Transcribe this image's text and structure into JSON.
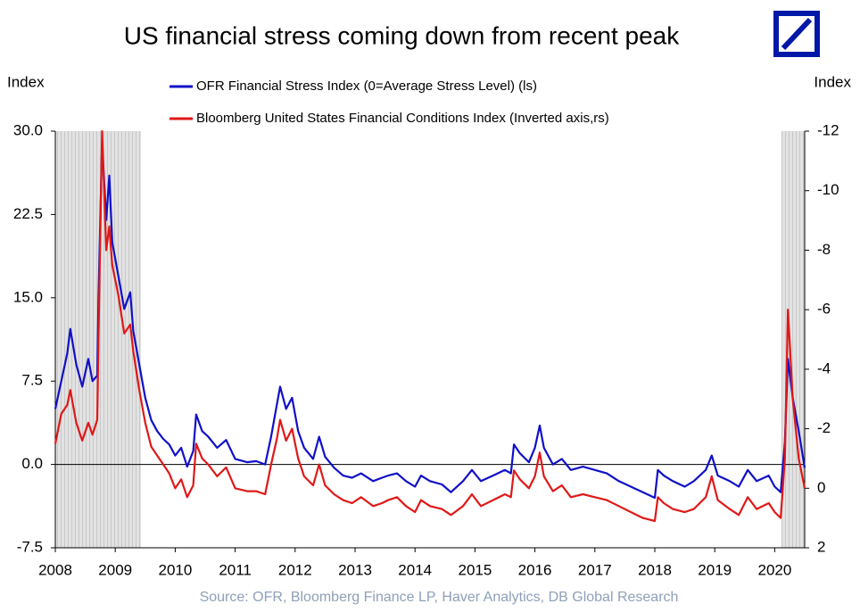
{
  "chart_data": {
    "type": "line",
    "title": "US financial stress coming down from recent peak",
    "y_label": "Index",
    "y2_label": "Index",
    "source": "Source:  OFR, Bloomberg Finance LP, Haver Analytics, DB Global  Research",
    "xlim": [
      2008,
      2020.5
    ],
    "xticks": [
      2008,
      2009,
      2010,
      2011,
      2012,
      2013,
      2014,
      2015,
      2016,
      2017,
      2018,
      2019,
      2020
    ],
    "ylim": [
      -7.5,
      30
    ],
    "yticks": [
      -7.5,
      {
        "value": 0,
        "label": "0.0"
      },
      7.5,
      {
        "value": 15,
        "label": "15.0"
      },
      22.5,
      {
        "value": 30,
        "label": "30.0"
      }
    ],
    "y2lim": [
      2,
      -12
    ],
    "y2ticks": [
      2,
      0,
      -2,
      -4,
      -6,
      -8,
      -10,
      -12
    ],
    "shaded_regions": [
      [
        2008,
        2009.43
      ],
      [
        2020.11,
        2020.5
      ]
    ],
    "x": [
      2008.0,
      2008.1,
      2008.2,
      2008.25,
      2008.35,
      2008.45,
      2008.55,
      2008.62,
      2008.7,
      2008.72,
      2008.78,
      2008.85,
      2008.9,
      2008.95,
      2009.05,
      2009.15,
      2009.25,
      2009.3,
      2009.4,
      2009.5,
      2009.6,
      2009.7,
      2009.8,
      2009.9,
      2010.0,
      2010.1,
      2010.2,
      2010.3,
      2010.35,
      2010.45,
      2010.55,
      2010.7,
      2010.85,
      2011.0,
      2011.2,
      2011.35,
      2011.5,
      2011.6,
      2011.7,
      2011.75,
      2011.85,
      2011.95,
      2012.05,
      2012.15,
      2012.3,
      2012.4,
      2012.5,
      2012.65,
      2012.8,
      2012.95,
      2013.1,
      2013.3,
      2013.45,
      2013.55,
      2013.7,
      2013.85,
      2014.0,
      2014.1,
      2014.25,
      2014.45,
      2014.6,
      2014.8,
      2014.95,
      2015.1,
      2015.3,
      2015.5,
      2015.6,
      2015.65,
      2015.75,
      2015.9,
      2016.0,
      2016.08,
      2016.15,
      2016.3,
      2016.45,
      2016.6,
      2016.8,
      2017.0,
      2017.2,
      2017.4,
      2017.6,
      2017.8,
      2018.0,
      2018.05,
      2018.15,
      2018.3,
      2018.5,
      2018.65,
      2018.85,
      2018.95,
      2019.05,
      2019.25,
      2019.4,
      2019.55,
      2019.7,
      2019.9,
      2020.0,
      2020.1,
      2020.17,
      2020.22,
      2020.3,
      2020.4,
      2020.5
    ],
    "series": [
      {
        "name": "OFR Financial Stress Index (0=Average Stress Level) (ls)",
        "color": "#1010c8",
        "values": [
          5,
          7.5,
          10,
          12.2,
          9,
          7,
          9.5,
          7.5,
          8,
          15,
          29,
          22,
          26,
          20,
          17,
          14,
          15.5,
          12,
          9,
          6,
          4,
          3,
          2.3,
          1.8,
          0.8,
          1.5,
          -0.2,
          1.2,
          4.5,
          3,
          2.5,
          1.5,
          2.2,
          0.5,
          0.2,
          0.3,
          0,
          2.5,
          5.5,
          7,
          5,
          6,
          3,
          1.5,
          0.5,
          2.5,
          0.7,
          -0.3,
          -1,
          -1.2,
          -0.8,
          -1.5,
          -1.2,
          -1,
          -0.8,
          -1.5,
          -2,
          -1,
          -1.5,
          -1.8,
          -2.5,
          -1.5,
          -0.5,
          -1.5,
          -1,
          -0.5,
          -0.8,
          1.8,
          1,
          0.2,
          1.5,
          3.5,
          1.5,
          0,
          0.5,
          -0.5,
          -0.2,
          -0.5,
          -0.8,
          -1.5,
          -2,
          -2.5,
          -3,
          -0.5,
          -1,
          -1.5,
          -2,
          -1.5,
          -0.5,
          0.8,
          -1,
          -1.5,
          -2,
          -0.5,
          -1.5,
          -1,
          -2,
          -2.5,
          2,
          9.5,
          6,
          3,
          -0.3
        ]
      },
      {
        "name": "Bloomberg United States Financial Conditions Index  (Inverted axis,rs)",
        "color": "#e01818",
        "axis": "y2",
        "values": [
          -1.5,
          -2.5,
          -2.8,
          -3.3,
          -2.2,
          -1.6,
          -2.2,
          -1.8,
          -2.3,
          -5,
          -12,
          -8,
          -8.8,
          -7.5,
          -6.5,
          -5.2,
          -5.5,
          -4.6,
          -3.3,
          -2.2,
          -1.4,
          -1.1,
          -0.8,
          -0.5,
          0,
          -0.3,
          0.3,
          -0.1,
          -1.5,
          -1,
          -0.8,
          -0.4,
          -0.7,
          0,
          0.1,
          0.1,
          0.2,
          -0.8,
          -1.7,
          -2.3,
          -1.6,
          -2,
          -1,
          -0.4,
          -0.1,
          -0.8,
          -0.1,
          0.2,
          0.4,
          0.5,
          0.3,
          0.6,
          0.5,
          0.4,
          0.3,
          0.6,
          0.8,
          0.4,
          0.6,
          0.7,
          0.9,
          0.6,
          0.2,
          0.6,
          0.4,
          0.2,
          0.3,
          -0.6,
          -0.3,
          0,
          -0.4,
          -1.2,
          -0.4,
          0.1,
          -0.1,
          0.3,
          0.2,
          0.3,
          0.4,
          0.6,
          0.8,
          1,
          1.1,
          0.3,
          0.5,
          0.7,
          0.8,
          0.7,
          0.3,
          -0.4,
          0.4,
          0.7,
          0.9,
          0.3,
          0.7,
          0.5,
          0.8,
          1,
          -1,
          -6,
          -3,
          -1,
          0
        ]
      }
    ]
  }
}
